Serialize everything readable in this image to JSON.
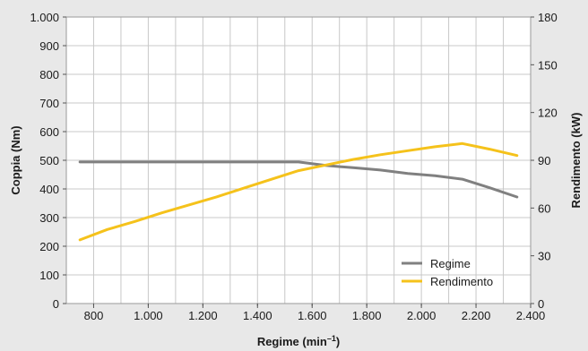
{
  "chart_data": {
    "type": "line",
    "xlabel": "Regime (min",
    "xlabel_sup": "–1",
    "xlabel_close": ")",
    "ylabel": "Coppia (Nm)",
    "y2label": "Rendimento (kW)",
    "xlim": [
      700,
      2400
    ],
    "ylim": [
      0,
      1000
    ],
    "y2lim": [
      0,
      180
    ],
    "xticks": [
      800,
      1000,
      1200,
      1400,
      1600,
      1800,
      2000,
      2200,
      2400
    ],
    "xtick_labels": [
      "800",
      "1.000",
      "1.200",
      "1.400",
      "1.600",
      "1.800",
      "2.000",
      "2.200",
      "2.400"
    ],
    "yticks": [
      0,
      100,
      200,
      300,
      400,
      500,
      600,
      700,
      800,
      900,
      1000
    ],
    "ytick_labels": [
      "0",
      "100",
      "200",
      "300",
      "400",
      "500",
      "600",
      "700",
      "800",
      "900",
      "1.000"
    ],
    "y2ticks": [
      0,
      30,
      60,
      90,
      120,
      150,
      180
    ],
    "y2tick_labels": [
      "0",
      "30",
      "60",
      "90",
      "120",
      "150",
      "180"
    ],
    "grid": true,
    "legend_position": "bottom-right",
    "series": [
      {
        "name": "Regime",
        "axis": "left",
        "color": "#808080",
        "x": [
          750,
          1000,
          1200,
          1400,
          1550,
          1650,
          1750,
          1850,
          1950,
          2050,
          2150,
          2250,
          2350
        ],
        "y": [
          494,
          494,
          494,
          494,
          494,
          482,
          474,
          466,
          454,
          446,
          434,
          404,
          372
        ]
      },
      {
        "name": "Rendimento",
        "axis": "right",
        "color": "#f5c21b",
        "x": [
          750,
          850,
          950,
          1050,
          1150,
          1250,
          1350,
          1450,
          1550,
          1650,
          1750,
          1850,
          1950,
          2050,
          2150,
          2250,
          2350
        ],
        "y": [
          40,
          46.5,
          51.5,
          57,
          62,
          67,
          72.5,
          78,
          83.5,
          87,
          90.5,
          93.5,
          96,
          98.5,
          100.5,
          97,
          93
        ]
      }
    ]
  }
}
